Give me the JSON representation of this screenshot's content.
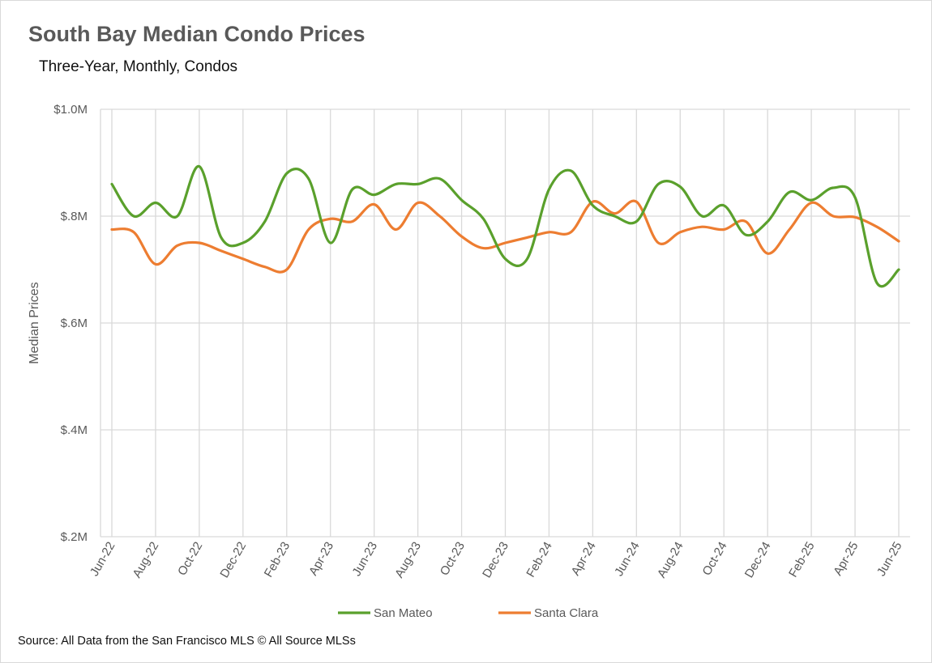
{
  "chart_data": {
    "type": "line",
    "title": "South Bay Median Condo Prices",
    "subtitle": "Three-Year, Monthly, Condos",
    "ylabel": "Median Prices",
    "xlabel": "",
    "ylim": [
      200000,
      1000000
    ],
    "y_ticks": [
      {
        "value": 1000000,
        "label": "$1.0M"
      },
      {
        "value": 800000,
        "label": "$.8M"
      },
      {
        "value": 600000,
        "label": "$.6M"
      },
      {
        "value": 400000,
        "label": "$.4M"
      },
      {
        "value": 200000,
        "label": "$.2M"
      }
    ],
    "x_tick_labels": [
      "Jun-22",
      "Aug-22",
      "Oct-22",
      "Dec-22",
      "Feb-23",
      "Apr-23",
      "Jun-23",
      "Aug-23",
      "Oct-23",
      "Dec-23",
      "Feb-24",
      "Apr-24",
      "Jun-24",
      "Aug-24",
      "Oct-24",
      "Dec-24",
      "Feb-25",
      "Apr-25",
      "Jun-25"
    ],
    "grid": true,
    "legend_position": "bottom",
    "x": [
      "Jun-22",
      "Jul-22",
      "Aug-22",
      "Sep-22",
      "Oct-22",
      "Nov-22",
      "Dec-22",
      "Jan-23",
      "Feb-23",
      "Mar-23",
      "Apr-23",
      "May-23",
      "Jun-23",
      "Jul-23",
      "Aug-23",
      "Sep-23",
      "Oct-23",
      "Nov-23",
      "Dec-23",
      "Jan-24",
      "Feb-24",
      "Mar-24",
      "Apr-24",
      "May-24",
      "Jun-24",
      "Jul-24",
      "Aug-24",
      "Sep-24",
      "Oct-24",
      "Nov-24",
      "Dec-24",
      "Jan-25",
      "Feb-25",
      "Mar-25",
      "Apr-25",
      "May-25",
      "Jun-25"
    ],
    "series": [
      {
        "name": "San Mateo",
        "color": "#5aa02c",
        "values": [
          860000,
          800000,
          825000,
          800000,
          893000,
          760000,
          750000,
          790000,
          880000,
          870000,
          750000,
          850000,
          840000,
          860000,
          860000,
          870000,
          830000,
          795000,
          720000,
          720000,
          850000,
          885000,
          820000,
          800000,
          790000,
          860000,
          855000,
          800000,
          820000,
          765000,
          790000,
          845000,
          830000,
          853000,
          835000,
          675000,
          700000
        ]
      },
      {
        "name": "Santa Clara",
        "color": "#ed7d31",
        "values": [
          775000,
          770000,
          710000,
          745000,
          750000,
          735000,
          720000,
          705000,
          700000,
          775000,
          795000,
          790000,
          822000,
          775000,
          825000,
          800000,
          762000,
          740000,
          750000,
          760000,
          770000,
          770000,
          827000,
          805000,
          827000,
          750000,
          770000,
          780000,
          775000,
          790000,
          730000,
          775000,
          825000,
          800000,
          798000,
          780000,
          753000
        ]
      }
    ]
  },
  "source_note": "Source: All Data from the San Francisco MLS © All Source MLSs"
}
